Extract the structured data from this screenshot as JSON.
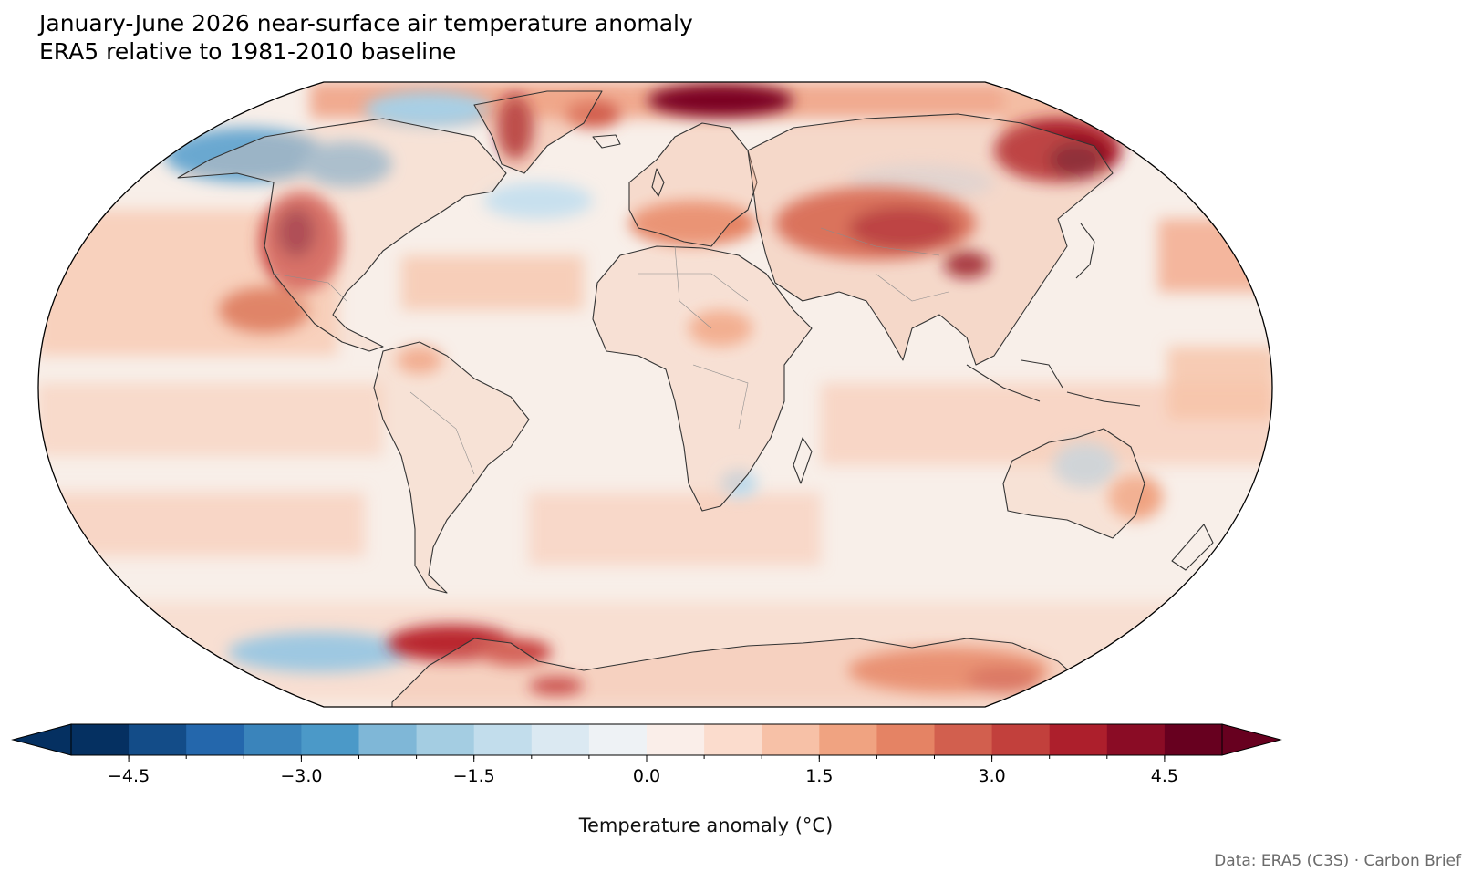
{
  "title": {
    "line1": "January-June 2026 near-surface air temperature anomaly",
    "line2": "ERA5 relative to 1981-2010 baseline"
  },
  "credit": "Data: ERA5 (C3S) · Carbon Brief",
  "colorbar": {
    "label": "Temperature anomaly (°C)",
    "vmin": -5.0,
    "vmax": 5.0,
    "step": 0.5,
    "extend": "both",
    "colors": [
      "#053061",
      "#134c88",
      "#2467ac",
      "#3a84bb",
      "#4b99c8",
      "#7fb7d7",
      "#a4cde2",
      "#c2ddec",
      "#dbe9f2",
      "#eef2f5",
      "#faeee9",
      "#fbdccd",
      "#f7c1a7",
      "#f0a381",
      "#e58364",
      "#d25f4e",
      "#c2403c",
      "#ad1f2c",
      "#8a0c25",
      "#67001f"
    ],
    "ticks": [
      "−4.5",
      "−3.0",
      "−1.5",
      "0.0",
      "1.5",
      "3.0",
      "4.5"
    ],
    "tick_values": [
      -4.5,
      -3.0,
      -1.5,
      0.0,
      1.5,
      3.0,
      4.5
    ]
  },
  "map": {
    "projection": "Robinson",
    "background_fill": "#f8efe9",
    "coastline_color": "#333333",
    "border_color": "#8c8c8c"
  }
}
